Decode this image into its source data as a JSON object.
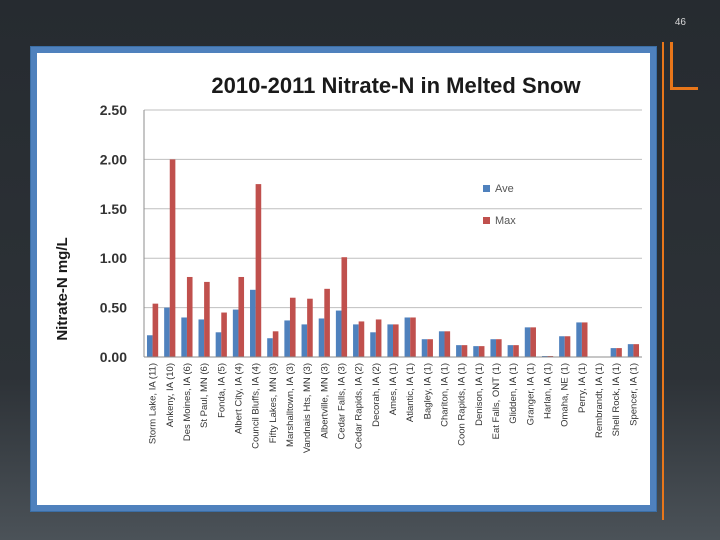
{
  "slide": {
    "number": "46"
  },
  "colors": {
    "ave": "#4f81bd",
    "max": "#c0504d",
    "accent": "#e8761a",
    "frame": "#4f81bd"
  },
  "chart_data": {
    "type": "bar",
    "title": "2010-2011 Nitrate-N in Melted Snow",
    "xlabel": "",
    "ylabel": "Nitrate-N mg/L",
    "ylim": [
      0,
      2.5
    ],
    "yticks": [
      "0.00",
      "0.50",
      "1.00",
      "1.50",
      "2.00",
      "2.50"
    ],
    "grid": true,
    "legend_position": "right",
    "categories": [
      "Storm Lake, IA (11)",
      "Ankeny, IA (10)",
      "Des Moines, IA (6)",
      "St Paul, MN (6)",
      "Fonda, IA (5)",
      "Albert City, IA (4)",
      "Council Bluffs, IA (4)",
      "Fifty Lakes, MN (3)",
      "Marshalltown, IA (3)",
      "Vandnais Hts, MN (3)",
      "Albertville, MN (3)",
      "Cedar Falls, IA (3)",
      "Cedar Rapids, IA (2)",
      "Decorah, IA (2)",
      "Ames, IA (1)",
      "Atlantic, IA (1)",
      "Bagley, IA (1)",
      "Chariton, IA (1)",
      "Coon Rapids, IA (1)",
      "Denison, IA (1)",
      "Eat Falls, ONT (1)",
      "Glidden, IA (1)",
      "Granger, IA (1)",
      "Harlan, IA (1)",
      "Omaha, NE (1)",
      "Perry, IA (1)",
      "Rembrandt, IA (1)",
      "Shell Rock, IA (1)",
      "Spencer, IA (1)"
    ],
    "series": [
      {
        "name": "Ave",
        "values": [
          0.22,
          0.5,
          0.4,
          0.38,
          0.25,
          0.48,
          0.68,
          0.19,
          0.37,
          0.33,
          0.39,
          0.47,
          0.33,
          0.25,
          0.33,
          0.4,
          0.18,
          0.26,
          0.12,
          0.11,
          0.18,
          0.12,
          0.3,
          0.01,
          0.21,
          0.35,
          0.0,
          0.09,
          0.13
        ]
      },
      {
        "name": "Max",
        "values": [
          0.54,
          2.0,
          0.81,
          0.76,
          0.45,
          0.81,
          1.75,
          0.26,
          0.6,
          0.59,
          0.69,
          1.01,
          0.36,
          0.38,
          0.33,
          0.4,
          0.18,
          0.26,
          0.12,
          0.11,
          0.18,
          0.12,
          0.3,
          0.01,
          0.21,
          0.35,
          0.0,
          0.09,
          0.13
        ]
      }
    ]
  }
}
